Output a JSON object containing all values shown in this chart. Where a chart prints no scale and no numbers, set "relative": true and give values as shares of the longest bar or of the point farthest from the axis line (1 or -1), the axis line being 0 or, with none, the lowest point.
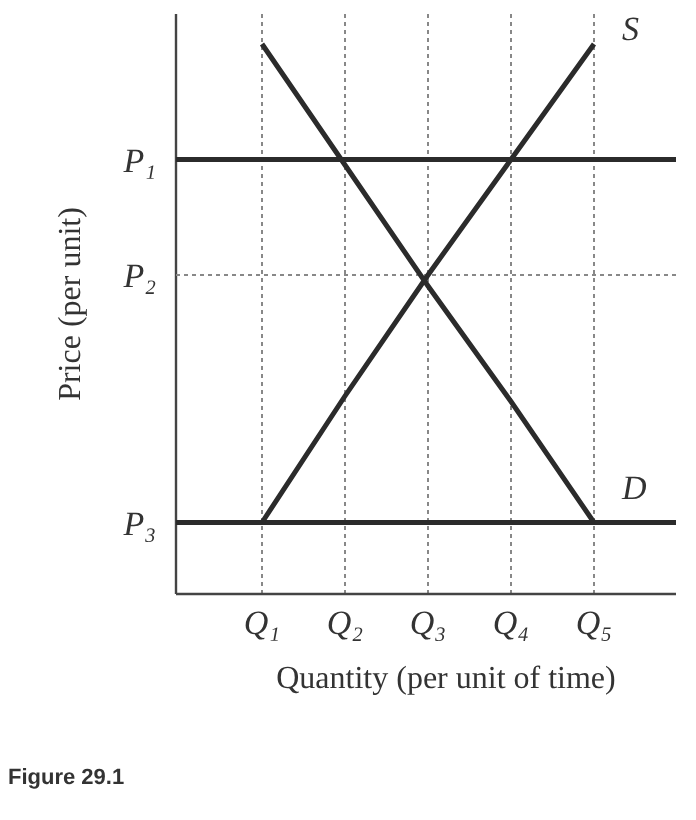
{
  "chart_data": {
    "type": "line",
    "relative": true,
    "xlabel": "Quantity (per unit of time)",
    "ylabel": "Price (per unit)",
    "categories": [
      "Q₁",
      "Q₂",
      "Q₃",
      "Q₄",
      "Q₅"
    ],
    "series": [
      {
        "name": "S",
        "color": "#2b2b2b",
        "values": [
          0.13,
          0.36,
          0.58,
          0.79,
          1
        ]
      },
      {
        "name": "D",
        "color": "#2b2b2b",
        "values": [
          1,
          0.78,
          0.56,
          0.35,
          0.13
        ]
      }
    ],
    "ref_lines": [
      {
        "axis": "y",
        "value": 0.79,
        "label": "P₁",
        "line_style": "solid"
      },
      {
        "axis": "y",
        "value": 0.58,
        "label": "P₂",
        "line_style": "dotted"
      },
      {
        "axis": "y",
        "value": 0.13,
        "label": "P₃",
        "line_style": "solid"
      }
    ],
    "grid": "x",
    "legend": false,
    "marker": "none",
    "line_style": "solid",
    "annotations": [
      "Figure 29.1"
    ]
  }
}
